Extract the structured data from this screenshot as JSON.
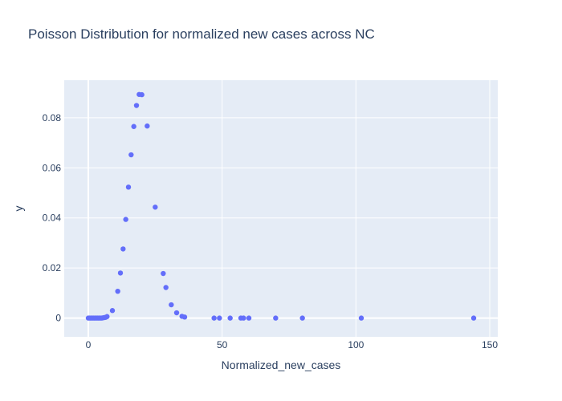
{
  "chart_data": {
    "type": "scatter",
    "title": "Poisson Distribution for normalized new cases across NC",
    "xlabel": "Normalized_new_cases",
    "ylabel": "y",
    "xlim": [
      -9,
      153
    ],
    "ylim": [
      -0.0075,
      0.095
    ],
    "xticks": [
      0,
      50,
      100,
      150
    ],
    "yticks": [
      0,
      0.02,
      0.04,
      0.06,
      0.08
    ],
    "ytick_labels": [
      "0",
      "0.02",
      "0.04",
      "0.06",
      "0.08"
    ],
    "grid": true,
    "legend": "none",
    "colors": {
      "marker": "#636efa",
      "plot_bg": "#e5ecf6",
      "grid": "#ffffff",
      "text": "#2a3f5f"
    },
    "series": [
      {
        "points": [
          [
            0,
            0
          ],
          [
            0.5,
            0
          ],
          [
            1,
            0
          ],
          [
            1.5,
            0
          ],
          [
            2,
            0
          ],
          [
            2.5,
            0
          ],
          [
            3,
            0
          ],
          [
            3.5,
            0
          ],
          [
            4,
            0
          ],
          [
            4.5,
            0
          ],
          [
            5,
            0
          ],
          [
            5.5,
            0.0001
          ],
          [
            6,
            0.0002
          ],
          [
            6.5,
            0.0003
          ],
          [
            7,
            0.0006
          ],
          [
            9,
            0.003
          ],
          [
            11,
            0.0107
          ],
          [
            12,
            0.018
          ],
          [
            13,
            0.0276
          ],
          [
            14,
            0.0394
          ],
          [
            15,
            0.0523
          ],
          [
            16,
            0.0652
          ],
          [
            17,
            0.0765
          ],
          [
            18,
            0.0849
          ],
          [
            19,
            0.0893
          ],
          [
            20,
            0.0892
          ],
          [
            22,
            0.0767
          ],
          [
            25,
            0.0443
          ],
          [
            28,
            0.0178
          ],
          [
            29,
            0.0122
          ],
          [
            31,
            0.0053
          ],
          [
            33,
            0.0021
          ],
          [
            35,
            0.0007
          ],
          [
            36,
            0.0004
          ],
          [
            47,
            0
          ],
          [
            49,
            0
          ],
          [
            53,
            0
          ],
          [
            57,
            0
          ],
          [
            58,
            0
          ],
          [
            60,
            0
          ],
          [
            70,
            0
          ],
          [
            80,
            0
          ],
          [
            102,
            0
          ],
          [
            144,
            0
          ]
        ]
      }
    ]
  }
}
